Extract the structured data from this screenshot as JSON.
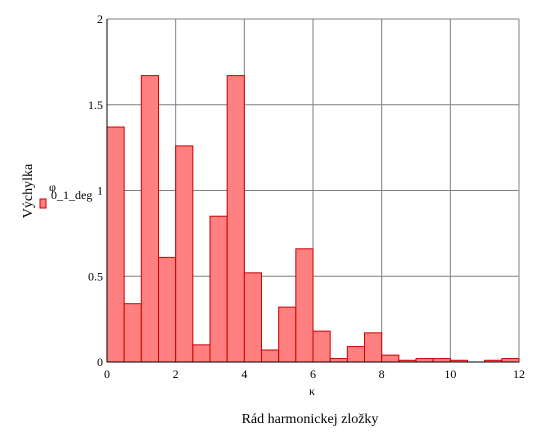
{
  "chart_data": {
    "type": "bar",
    "xlabel": "Rád harmonickej zložky",
    "xvar": "κ",
    "ylabel": "Výchylka",
    "legend": {
      "symbol": "φ",
      "subscript": "0_1_deg",
      "placement": "left-middle"
    },
    "xlim": [
      0,
      12
    ],
    "ylim": [
      0,
      2
    ],
    "xticks": [
      "0",
      "2",
      "4",
      "6",
      "8",
      "10",
      "12"
    ],
    "yticks": [
      "0",
      "0.5",
      "1",
      "1.5",
      "2"
    ],
    "grid": true,
    "bar_color": "#ff8080",
    "edge_color": "#cc0000",
    "bar_width": 0.5,
    "x": [
      0.5,
      1,
      1.5,
      2,
      2.5,
      3,
      3.5,
      4,
      4.5,
      5,
      5.5,
      6,
      6.5,
      7,
      7.5,
      8,
      8.5,
      9,
      9.5,
      10,
      10.5,
      11,
      11.5,
      12
    ],
    "values": [
      1.37,
      0.34,
      1.67,
      0.61,
      1.26,
      0.1,
      0.85,
      1.67,
      0.52,
      0.07,
      0.32,
      0.66,
      0.18,
      0.02,
      0.09,
      0.17,
      0.04,
      0.01,
      0.02,
      0.02,
      0.01,
      0.0,
      0.01,
      0.02
    ]
  }
}
